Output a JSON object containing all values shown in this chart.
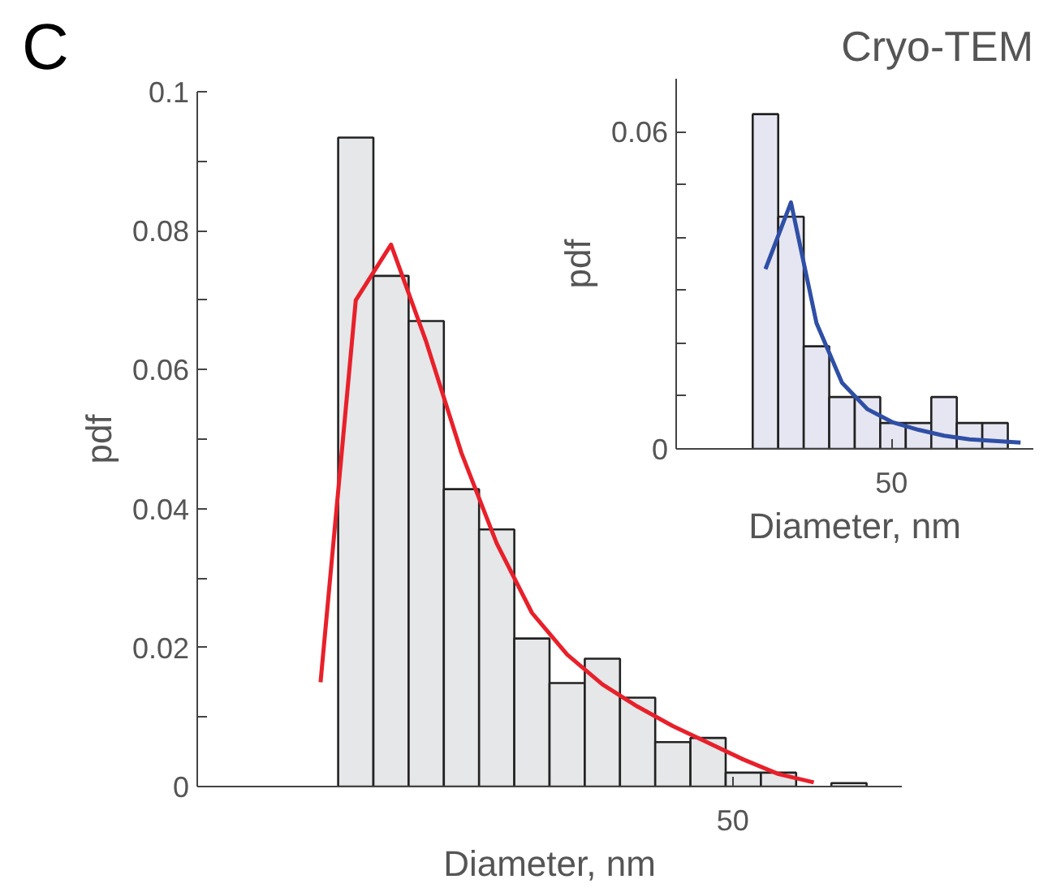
{
  "chart_data": [
    {
      "type": "bar",
      "xlabel": "Diameter, nm",
      "ylabel": "pdf",
      "annotations": [
        "C",
        "50"
      ],
      "categories": [
        null,
        null,
        null,
        null,
        null,
        null,
        null,
        null,
        null,
        null,
        null,
        null,
        null,
        null,
        null,
        null,
        null,
        null,
        null,
        null
      ],
      "values": [
        null,
        null,
        null,
        null,
        0.0934,
        0.0735,
        0.067,
        0.0428,
        0.037,
        0.0213,
        0.0149,
        0.0184,
        0.0128,
        0.0064,
        0.007,
        0.002,
        0.002,
        null,
        0.0005,
        null
      ],
      "color": "#e6e7e9",
      "ylim": [
        0,
        0.1
      ],
      "yticks": [
        0,
        {
          "value": 0.01,
          "label": null
        },
        0.02,
        {
          "value": 0.03,
          "label": null
        },
        0.04,
        {
          "value": 0.05,
          "label": null
        },
        0.06,
        {
          "value": 0.07,
          "label": null
        },
        0.08,
        {
          "value": 0.09,
          "label": null
        },
        0.1
      ],
      "series": [
        {
          "type": "line",
          "color": "#e8202a",
          "values": [
            null,
            null,
            null,
            0.015,
            0.07,
            0.078,
            0.064,
            0.048,
            0.035,
            0.025,
            0.019,
            0.0147,
            0.0115,
            0.0087,
            0.0063,
            0.0039,
            0.0018,
            0.0006,
            null,
            null
          ]
        }
      ]
    },
    {
      "type": "bar",
      "title": "Cryo-TEM",
      "xlabel": "Diameter, nm",
      "ylabel": "pdf",
      "annotations": [
        "50"
      ],
      "categories": [
        null,
        null,
        null,
        null,
        null,
        null,
        null,
        null,
        null,
        null,
        null,
        null,
        null,
        null
      ],
      "values": [
        null,
        null,
        null,
        0.0633,
        0.0439,
        0.0194,
        0.0098,
        0.0098,
        0.0049,
        0.0049,
        0.0098,
        0.0049,
        0.0049,
        null
      ],
      "color": "#e6e6f2",
      "ylim": [
        0,
        0.07
      ],
      "yticks": [
        0,
        {
          "value": 0.01,
          "label": null
        },
        {
          "value": 0.02,
          "label": null
        },
        {
          "value": 0.03,
          "label": null
        },
        {
          "value": 0.04,
          "label": null
        },
        {
          "value": 0.05,
          "label": null
        },
        0.06
      ],
      "series": [
        {
          "type": "line",
          "color": "#2f4fa6",
          "values": [
            null,
            null,
            null,
            0.034,
            0.0466,
            0.0238,
            0.0125,
            0.0075,
            0.005,
            0.0036,
            0.0025,
            0.0018,
            0.0015,
            0.0012
          ]
        }
      ]
    }
  ]
}
